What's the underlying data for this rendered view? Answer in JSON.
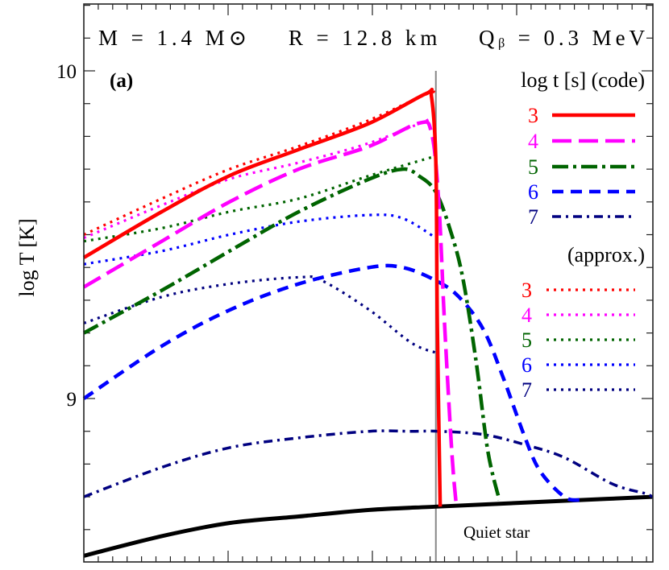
{
  "chart_data": {
    "type": "line",
    "annotation": "M = 1.4 M⊙    R = 12.8 km    Qᵦ = 0.3 MeV",
    "annotation_parts": {
      "mass": "M = 1.4 M",
      "radius": "R = 12.8 km",
      "qb": "Q",
      "qb_sub": "b",
      "qb_value": " = 0.3 MeV"
    },
    "panel_label": "(a)",
    "ylabel": "log T [K]",
    "xlabel": "",
    "ylim": [
      8.5,
      10.2
    ],
    "xlim": [
      0,
      3.95
    ],
    "yticks_labeled": [
      "10",
      "9"
    ],
    "x_tick_labels": [],
    "vertical_marker_x": 2.44,
    "text_label": "Quiet star",
    "legend": {
      "placement": "right",
      "code_title": "log t [s] (code)",
      "approx_title": "(approx.)"
    },
    "series": [
      {
        "name": "3",
        "group": "code",
        "color": "#ff0000",
        "style": "solid",
        "x": [
          0,
          0.54,
          1.01,
          1.49,
          1.98,
          2.37,
          2.41,
          2.44,
          2.45,
          2.47
        ],
        "y": [
          9.43,
          9.57,
          9.68,
          9.76,
          9.84,
          9.93,
          9.92,
          9.72,
          9.23,
          8.67
        ]
      },
      {
        "name": "4",
        "group": "code",
        "color": "#ff00ff",
        "style": "long-dash",
        "x": [
          0,
          0.54,
          1.01,
          1.49,
          1.98,
          2.32,
          2.41,
          2.46,
          2.5,
          2.55,
          2.58
        ],
        "y": [
          9.34,
          9.48,
          9.6,
          9.7,
          9.77,
          9.84,
          9.81,
          9.6,
          9.23,
          8.84,
          8.68
        ]
      },
      {
        "name": "5",
        "group": "code",
        "color": "#006400",
        "style": "dash-dot",
        "x": [
          0,
          0.54,
          1.01,
          1.49,
          1.98,
          2.21,
          2.32,
          2.44,
          2.55,
          2.63,
          2.72,
          2.8,
          2.88
        ],
        "y": [
          9.2,
          9.33,
          9.45,
          9.57,
          9.67,
          9.7,
          9.68,
          9.63,
          9.5,
          9.36,
          9.11,
          8.84,
          8.69
        ]
      },
      {
        "name": "6",
        "group": "code",
        "color": "#0000ff",
        "style": "dashed",
        "x": [
          0,
          0.54,
          1.01,
          1.49,
          1.98,
          2.21,
          2.44,
          2.6,
          2.77,
          2.91,
          3.05,
          3.16,
          3.33,
          3.44
        ],
        "y": [
          9.0,
          9.16,
          9.27,
          9.35,
          9.4,
          9.4,
          9.36,
          9.31,
          9.21,
          9.06,
          8.89,
          8.78,
          8.7,
          8.69
        ]
      },
      {
        "name": "7",
        "group": "code",
        "color": "#000080",
        "style": "dash-dot-dot",
        "x": [
          0,
          0.54,
          1.01,
          1.49,
          1.98,
          2.27,
          2.46,
          2.77,
          3.05,
          3.33,
          3.66,
          3.89,
          3.94
        ],
        "y": [
          8.7,
          8.79,
          8.85,
          8.88,
          8.9,
          8.9,
          8.9,
          8.89,
          8.86,
          8.82,
          8.74,
          8.71,
          8.7
        ]
      },
      {
        "name": "3",
        "group": "approx",
        "color": "#ff0000",
        "style": "dotted",
        "x": [
          0,
          0.54,
          1.01,
          1.49,
          1.98,
          2.38,
          2.44
        ],
        "y": [
          9.5,
          9.61,
          9.7,
          9.77,
          9.85,
          9.93,
          9.93
        ]
      },
      {
        "name": "4",
        "group": "approx",
        "color": "#ff00ff",
        "style": "dotted",
        "x": [
          0,
          0.54,
          1.01,
          1.49,
          1.98,
          2.44
        ],
        "y": [
          9.49,
          9.59,
          9.67,
          9.72,
          9.78,
          9.86
        ]
      },
      {
        "name": "5",
        "group": "approx",
        "color": "#006400",
        "style": "dotted",
        "x": [
          0,
          0.54,
          1.01,
          1.49,
          1.98,
          2.44
        ],
        "y": [
          9.48,
          9.52,
          9.57,
          9.61,
          9.68,
          9.74
        ]
      },
      {
        "name": "6",
        "group": "approx",
        "color": "#0000ff",
        "style": "dotted",
        "x": [
          0,
          0.54,
          1.01,
          1.49,
          1.98,
          2.21,
          2.44
        ],
        "y": [
          9.41,
          9.45,
          9.5,
          9.54,
          9.56,
          9.55,
          9.49
        ]
      },
      {
        "name": "7",
        "group": "approx",
        "color": "#000080",
        "style": "dotted",
        "x": [
          0,
          0.54,
          1.01,
          1.49,
          1.65,
          1.98,
          2.27,
          2.44
        ],
        "y": [
          9.23,
          9.31,
          9.35,
          9.37,
          9.36,
          9.27,
          9.17,
          9.14
        ]
      },
      {
        "name": "Quiet star",
        "group": "reference",
        "color": "#000000",
        "style": "solid-thick",
        "x": [
          0,
          0.54,
          1.01,
          1.49,
          1.98,
          2.44,
          2.94,
          3.44,
          3.94
        ],
        "y": [
          8.52,
          8.58,
          8.62,
          8.64,
          8.66,
          8.67,
          8.68,
          8.69,
          8.7
        ]
      }
    ]
  }
}
